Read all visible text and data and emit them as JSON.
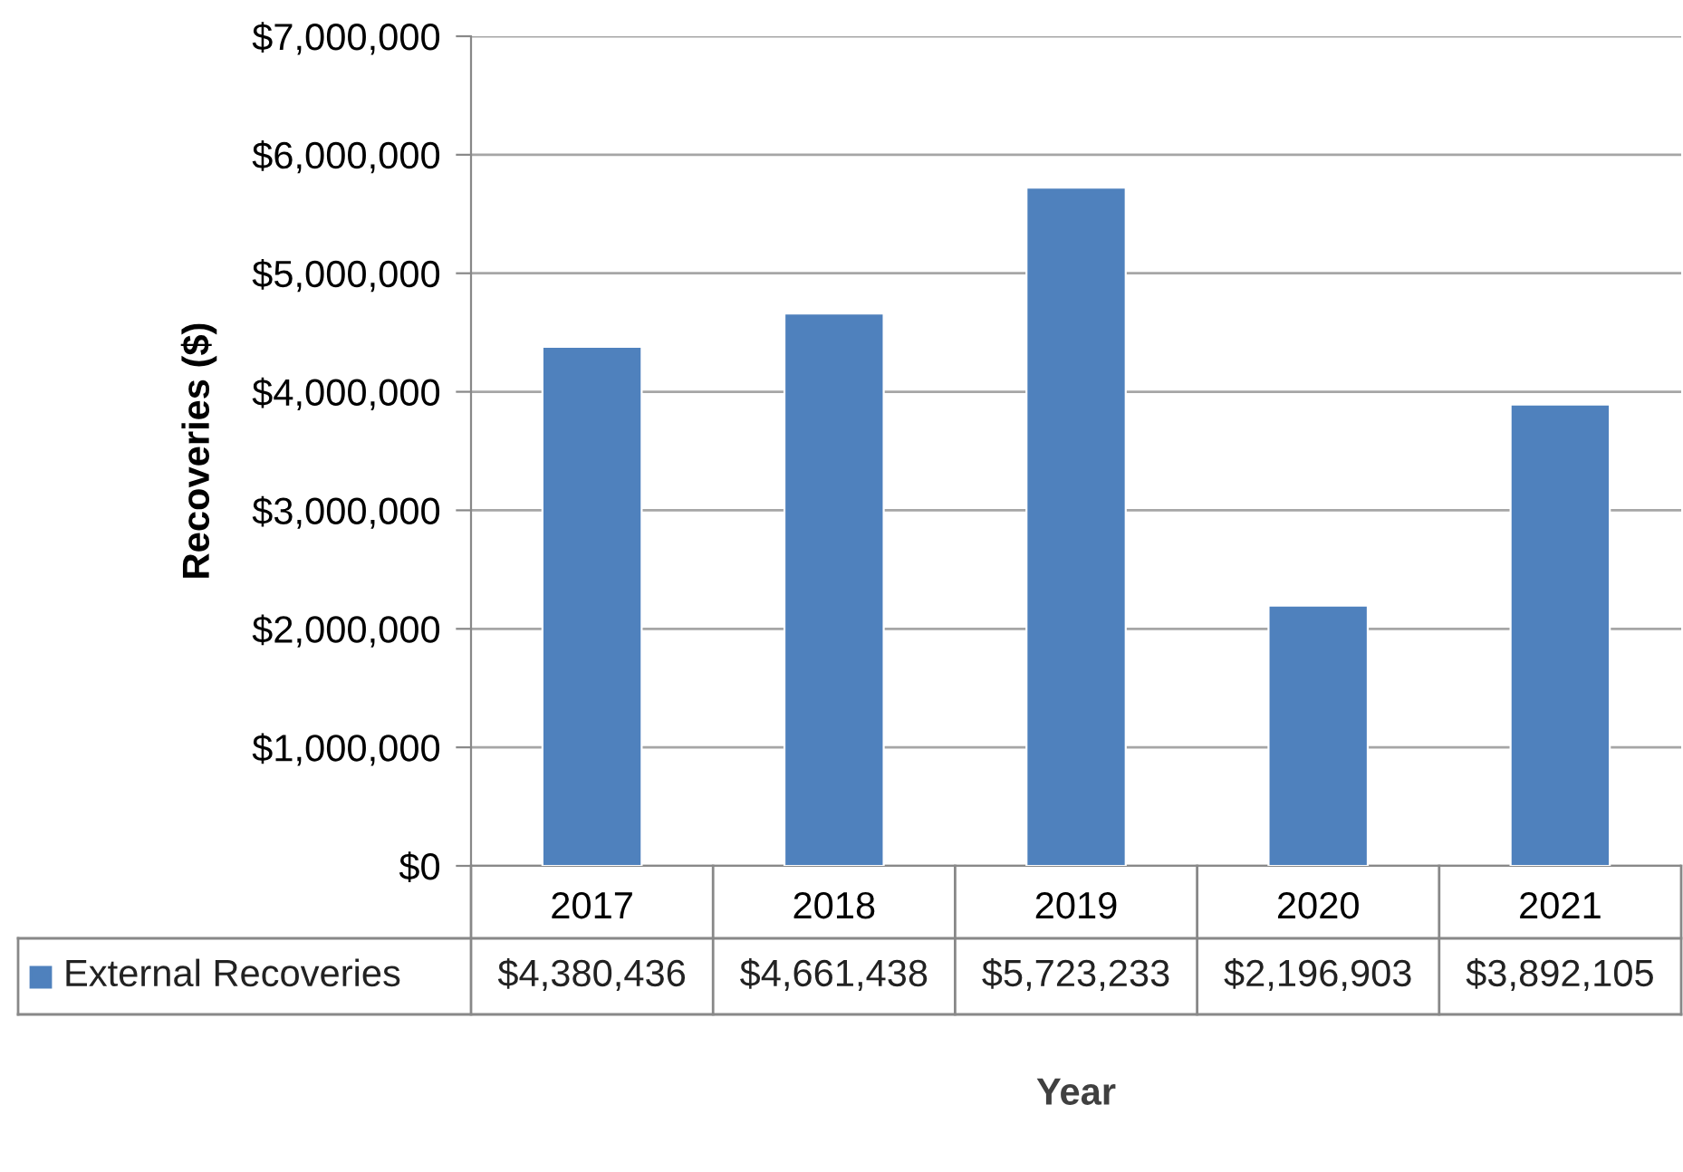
{
  "chart_data": {
    "type": "bar",
    "xlabel": "Year",
    "ylabel": "Recoveries ($)",
    "categories": [
      "2017",
      "2018",
      "2019",
      "2020",
      "2021"
    ],
    "series": [
      {
        "name": "External Recoveries",
        "color": "#4f81bd",
        "values": [
          4380436,
          4661438,
          5723233,
          2196903,
          3892105
        ],
        "value_labels": [
          "$4,380,436",
          "$4,661,438",
          "$5,723,233",
          "$2,196,903",
          "$3,892,105"
        ]
      }
    ],
    "ylim": [
      0,
      7000000
    ],
    "yticks": [
      {
        "value": 0,
        "label": "$0"
      },
      {
        "value": 1000000,
        "label": "$1,000,000"
      },
      {
        "value": 2000000,
        "label": "$2,000,000"
      },
      {
        "value": 3000000,
        "label": "$3,000,000"
      },
      {
        "value": 4000000,
        "label": "$4,000,000"
      },
      {
        "value": 5000000,
        "label": "$5,000,000"
      },
      {
        "value": 6000000,
        "label": "$6,000,000"
      },
      {
        "value": 7000000,
        "label": "$7,000,000"
      }
    ],
    "grid": "y",
    "legend": "bottom"
  }
}
